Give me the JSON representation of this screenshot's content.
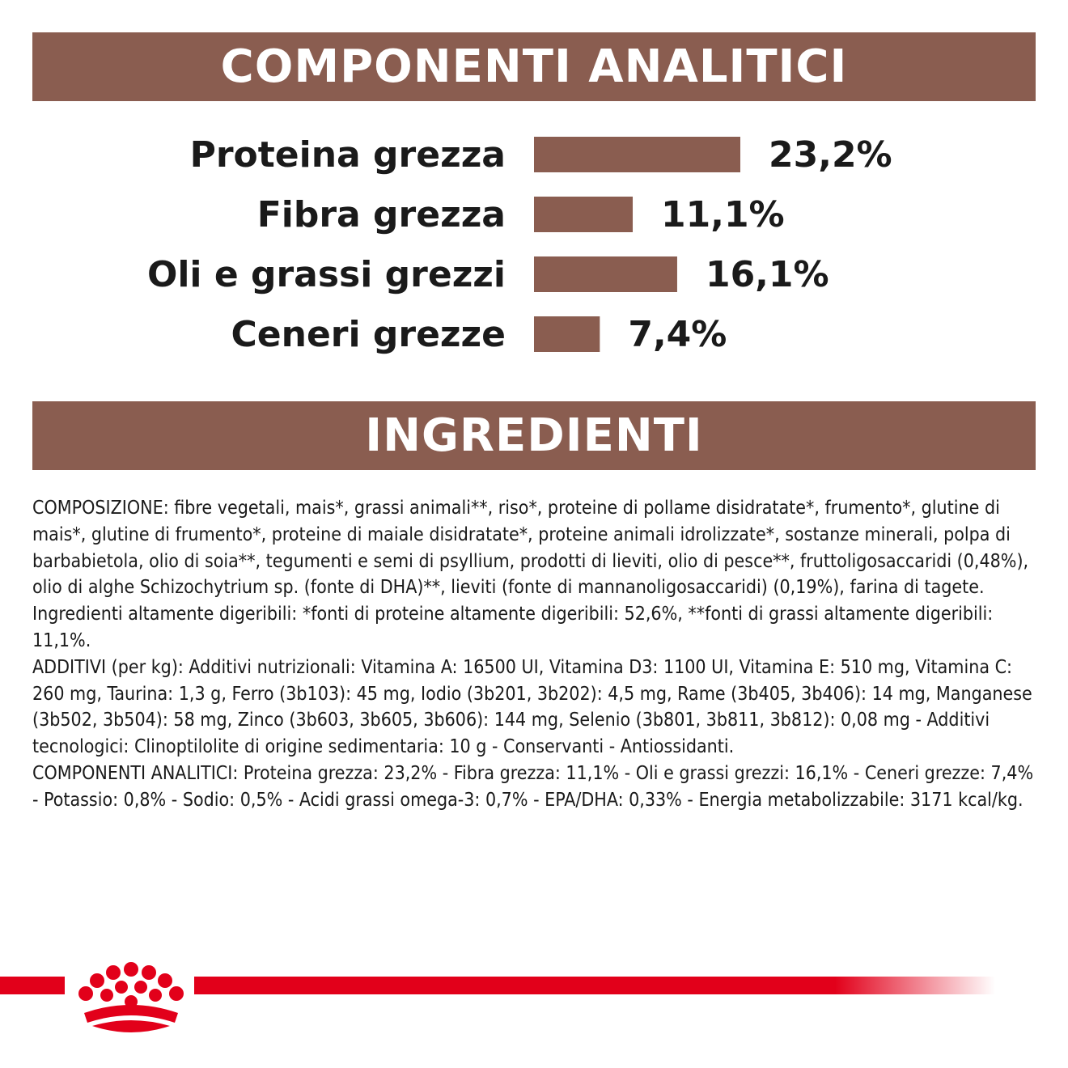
{
  "colors": {
    "banner": "#8a5d50",
    "bar": "#8a5d50",
    "brand_red": "#e2001a"
  },
  "sections": {
    "components_title": "COMPONENTI ANALITICI",
    "ingredients_title": "INGREDIENTI"
  },
  "chart_data": {
    "type": "bar",
    "orientation": "horizontal",
    "categories": [
      "Proteina grezza",
      "Fibra grezza",
      "Oli e grassi grezzi",
      "Ceneri grezze"
    ],
    "values": [
      23.2,
      11.1,
      16.1,
      7.4
    ],
    "value_labels": [
      "23,2%",
      "11,1%",
      "16,1%",
      "7,4%"
    ],
    "unit": "%",
    "xlim": [
      0,
      23.2
    ],
    "grid": false,
    "legend": "none"
  },
  "ingredients": {
    "composition": "COMPOSIZIONE: fibre vegetali, mais*, grassi animali**, riso*, proteine di pollame disidratate*, frumento*, glutine di mais*, glutine di frumento*, proteine di maiale disidratate*, proteine animali idrolizzate*, sostanze minerali, polpa di barbabietola, olio di soia**, tegumenti e semi di psyllium, prodotti di lieviti, olio di pesce**, fruttoligosaccaridi (0,48%), olio di alghe Schizochytrium sp. (fonte di DHA)**, lieviti (fonte di mannanoligosaccaridi) (0,19%), farina di tagete. Ingredienti altamente digeribili: *fonti di proteine altamente digeribili: 52,6%, **fonti di grassi altamente digeribili: 11,1%.",
    "additives": "ADDITIVI (per kg): Additivi nutrizionali: Vitamina A: 16500 UI, Vitamina D3: 1100 UI, Vitamina E: 510 mg, Vitamina C: 260 mg, Taurina: 1,3 g, Ferro (3b103): 45 mg, Iodio (3b201, 3b202): 4,5 mg, Rame (3b405, 3b406): 14 mg, Manganese (3b502, 3b504): 58 mg, Zinco (3b603, 3b605, 3b606): 144 mg, Selenio (3b801, 3b811, 3b812): 0,08 mg - Additivi tecnologici: Clinoptilolite di origine sedimentaria: 10 g - Conservanti - Antiossidanti.",
    "analytical": "COMPONENTI ANALITICI: Proteina grezza: 23,2% - Fibra grezza: 11,1% - Oli e grassi grezzi: 16,1% - Ceneri grezze: 7,4% - Potassio: 0,8% - Sodio: 0,5% - Acidi grassi omega-3: 0,7% - EPA/DHA: 0,33% - Energia metabolizzabile: 3171 kcal/kg."
  },
  "footer": {
    "logo_icon": "crown-icon"
  }
}
